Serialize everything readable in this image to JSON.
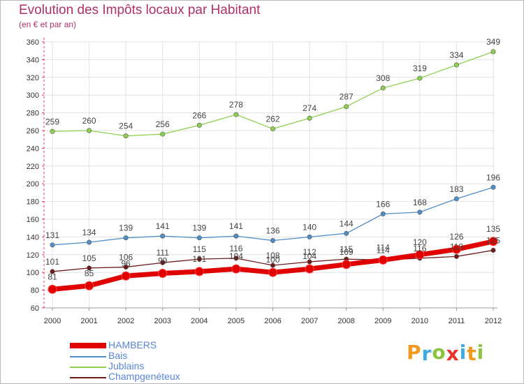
{
  "chart_data": {
    "type": "line",
    "title": "Evolution des Impôts locaux par Habitant",
    "subtitle": "(en € et par an)",
    "x": [
      "2000",
      "2001",
      "2002",
      "2003",
      "2004",
      "2005",
      "2006",
      "2007",
      "2008",
      "2009",
      "2010",
      "2011",
      "2012"
    ],
    "ylim": [
      60,
      360
    ],
    "yticks": [
      60,
      80,
      100,
      120,
      140,
      160,
      180,
      200,
      220,
      240,
      260,
      280,
      300,
      320,
      340,
      360
    ],
    "grid": true,
    "series": [
      {
        "name": "HAMBERS",
        "color": "#e00000",
        "values": [
          81,
          85,
          96,
          99,
          101,
          104,
          100,
          104,
          109,
          114,
          120,
          126,
          135
        ],
        "labels": [
          "81",
          "85",
          "96",
          "99",
          "101",
          "104",
          "100",
          "104",
          "109",
          "114",
          "120",
          "126",
          "135"
        ]
      },
      {
        "name": "Bais",
        "color": "#4f8fc9",
        "values": [
          131,
          134,
          139,
          141,
          139,
          141,
          136,
          140,
          144,
          166,
          168,
          183,
          196
        ],
        "labels": [
          "131",
          "134",
          "139",
          "141",
          "139",
          "141",
          "136",
          "140",
          "144",
          "166",
          "168",
          "183",
          "196"
        ]
      },
      {
        "name": "Jublains",
        "color": "#8ed14f",
        "values": [
          259,
          260,
          254,
          256,
          266,
          278,
          262,
          274,
          287,
          308,
          319,
          334,
          349
        ],
        "labels": [
          "259",
          "260",
          "254",
          "256",
          "266",
          "278",
          "262",
          "274",
          "287",
          "308",
          "319",
          "334",
          "349"
        ]
      },
      {
        "name": "Champgenéteux",
        "color": "#6e1a1a",
        "values": [
          101,
          105,
          106,
          111,
          115,
          116,
          108,
          112,
          115,
          114,
          116,
          118,
          125
        ],
        "labels": [
          "101",
          "105",
          "106",
          "111",
          "115",
          "116",
          "108",
          "112",
          "115",
          "114",
          "116",
          "118",
          "125"
        ]
      }
    ]
  },
  "legend": [
    {
      "name": "HAMBERS",
      "color": "#e00000"
    },
    {
      "name": "Bais",
      "color": "#4f8fc9"
    },
    {
      "name": "Jublains",
      "color": "#8ed14f"
    },
    {
      "name": "Champgenéteux",
      "color": "#6e1a1a"
    }
  ],
  "logo": {
    "text": "Proxiti",
    "letters": [
      "P",
      "r",
      "o",
      "x",
      "i",
      "t",
      "i"
    ],
    "colors": [
      "#f29a1f",
      "#3fa9e0",
      "#8ac43f",
      "#e8322b",
      "#3fa9e0",
      "#f29a1f",
      "#8ac43f"
    ]
  }
}
